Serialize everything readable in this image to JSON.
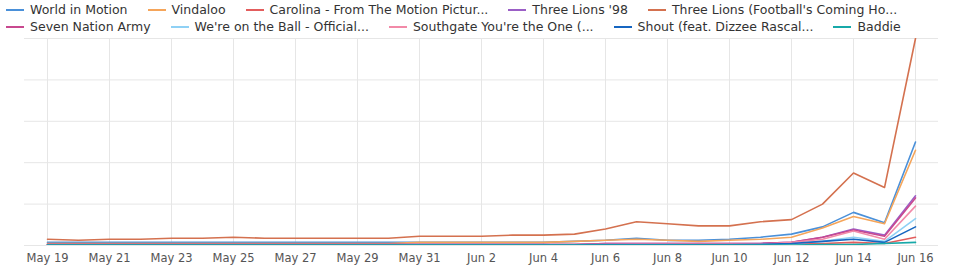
{
  "chart_data": {
    "type": "line",
    "legend": "top",
    "grid": true,
    "tick_labels": "x",
    "ylim": [
      0,
      100
    ],
    "yticks": [
      0,
      20,
      40,
      60,
      80,
      100
    ],
    "categories": [
      "May 19",
      null,
      "May 21",
      null,
      "May 23",
      null,
      "May 25",
      null,
      "May 27",
      null,
      "May 29",
      null,
      "May 31",
      null,
      "Jun 2",
      null,
      "Jun 4",
      null,
      "Jun 6",
      null,
      "Jun 8",
      null,
      "Jun 10",
      null,
      "Jun 12",
      null,
      "Jun 14",
      null,
      "Jun 16"
    ],
    "series": [
      {
        "name": "World in Motion",
        "color": "#4a90d9",
        "values": [
          1.5,
          1.5,
          1.5,
          1.5,
          1.5,
          1.5,
          1.5,
          1.5,
          1.5,
          1.5,
          1.5,
          1.5,
          1.5,
          1.5,
          1.5,
          1.5,
          1.5,
          2,
          2.5,
          3.5,
          2.5,
          2.5,
          3,
          4,
          5.5,
          9,
          16,
          11,
          50
        ]
      },
      {
        "name": "Vindaloo",
        "color": "#f5a55a",
        "values": [
          1,
          1,
          1,
          1,
          1,
          1,
          1,
          1,
          1,
          1,
          1,
          1,
          1.5,
          1.5,
          1.5,
          1.5,
          1.5,
          2,
          2.5,
          3,
          2.5,
          2,
          2.5,
          3,
          4,
          8.5,
          14,
          10.5,
          46
        ]
      },
      {
        "name": "Carolina - From The Motion Pictur...",
        "color": "#e35d5d",
        "values": [
          0.5,
          0.5,
          0.5,
          0.5,
          0.5,
          0.5,
          0.5,
          0.5,
          0.5,
          0.5,
          0.5,
          0.5,
          0.5,
          0.5,
          0.5,
          0.5,
          0.5,
          0.5,
          0.5,
          0.5,
          0.5,
          0.5,
          0.5,
          0.5,
          1,
          1,
          1.5,
          1,
          4
        ]
      },
      {
        "name": "Three Lions '98",
        "color": "#9b5fc6",
        "values": [
          0.5,
          0.5,
          0.5,
          0.5,
          0.5,
          0.5,
          0.5,
          0.5,
          0.5,
          0.5,
          0.5,
          0.5,
          0.5,
          0.5,
          0.5,
          0.5,
          0.5,
          0.5,
          1,
          1,
          1,
          1,
          1,
          1,
          1.5,
          4,
          8,
          5,
          24
        ]
      },
      {
        "name": "Three Lions (Football's Coming Ho...",
        "color": "#d4714f",
        "values": [
          3,
          2.5,
          3,
          3,
          3.5,
          3.5,
          4,
          3.5,
          3.5,
          3.5,
          3.5,
          3.5,
          4.5,
          4.5,
          4.5,
          5,
          5,
          5.5,
          8,
          11.5,
          10.5,
          9.5,
          9.5,
          11.5,
          12.5,
          20,
          35,
          28,
          100
        ]
      },
      {
        "name": "Seven Nation Army",
        "color": "#c8488f",
        "values": [
          0.5,
          0.5,
          0.5,
          0.5,
          0.5,
          0.5,
          0.5,
          0.5,
          0.5,
          0.5,
          0.5,
          0.5,
          0.5,
          0.5,
          0.5,
          0.5,
          0.5,
          0.5,
          1,
          1,
          1,
          1,
          1,
          1,
          1.5,
          4,
          7.5,
          4.5,
          23
        ]
      },
      {
        "name": "We're on the Ball - Official...",
        "color": "#8fd1f5",
        "values": [
          0.3,
          0.3,
          0.3,
          0.3,
          0.3,
          0.3,
          0.3,
          0.3,
          0.3,
          0.3,
          0.3,
          0.3,
          0.3,
          0.3,
          0.3,
          0.3,
          0.3,
          0.3,
          0.5,
          0.5,
          0.5,
          0.5,
          0.5,
          0.5,
          1,
          2,
          4,
          2,
          13
        ]
      },
      {
        "name": "Southgate You're the One (...",
        "color": "#f28aa8",
        "values": [
          0.3,
          0.3,
          0.3,
          0.3,
          0.3,
          0.3,
          0.3,
          0.3,
          0.3,
          0.3,
          0.3,
          0.3,
          0.3,
          0.3,
          0.3,
          0.3,
          0.3,
          0.3,
          0.3,
          0.5,
          0.5,
          0.5,
          0.5,
          0.5,
          1.5,
          3,
          7,
          3,
          19
        ]
      },
      {
        "name": "Shout (feat. Dizzee Rascal...",
        "color": "#1666c1",
        "values": [
          0.2,
          0.2,
          0.2,
          0.2,
          0.2,
          0.2,
          0.2,
          0.2,
          0.2,
          0.2,
          0.2,
          0.2,
          0.2,
          0.2,
          0.2,
          0.2,
          0.2,
          0.2,
          0.3,
          0.3,
          0.3,
          0.3,
          0.3,
          0.5,
          1,
          2,
          3,
          1.5,
          9
        ]
      },
      {
        "name": "Baddie",
        "color": "#17a9a9",
        "values": [
          0.2,
          0.2,
          0.2,
          0.2,
          0.2,
          0.2,
          0.2,
          0.2,
          0.2,
          0.2,
          0.2,
          0.2,
          0.2,
          0.2,
          0.2,
          0.2,
          0.2,
          0.2,
          0.2,
          0.2,
          0.2,
          0.2,
          0.2,
          0.2,
          0.2,
          0.5,
          0.5,
          1,
          1.5
        ]
      }
    ]
  }
}
